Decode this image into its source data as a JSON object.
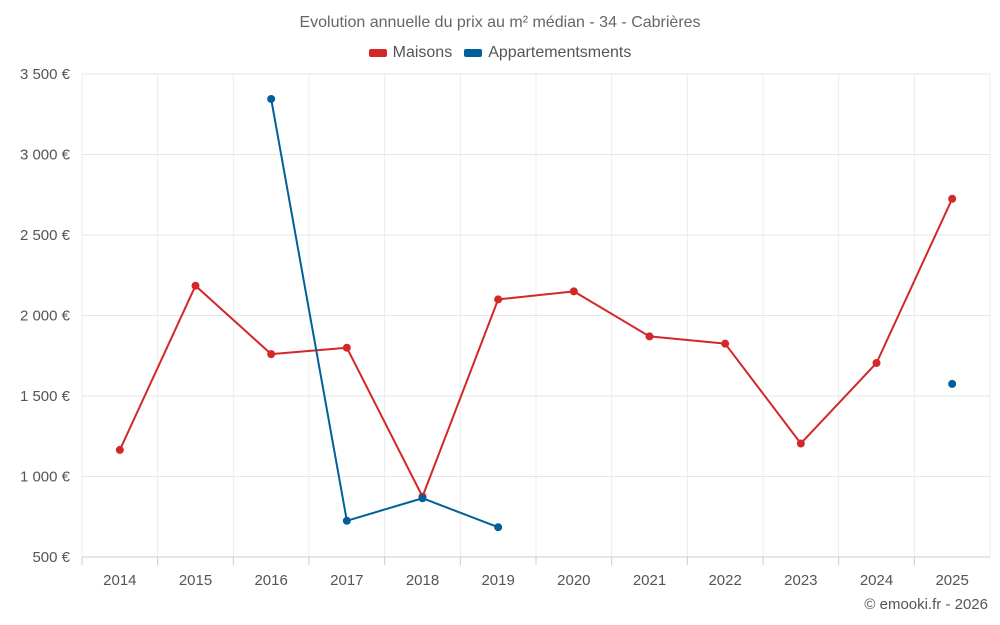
{
  "chart_data": {
    "type": "line",
    "title": "Evolution annuelle du prix au m² médian - 34 - Cabrières",
    "categories": [
      "2014",
      "2015",
      "2016",
      "2017",
      "2018",
      "2019",
      "2020",
      "2021",
      "2022",
      "2023",
      "2024",
      "2025"
    ],
    "y_ticks": [
      500,
      1000,
      1500,
      2000,
      2500,
      3000,
      3500
    ],
    "y_tick_labels": [
      "500 €",
      "1 000 €",
      "1 500 €",
      "2 000 €",
      "2 500 €",
      "3 000 €",
      "3 500 €"
    ],
    "ylim": [
      500,
      3500
    ],
    "grid": true,
    "legend_position": "top",
    "series": [
      {
        "name": "Maisons",
        "color": "#d32728",
        "values": [
          1165,
          2185,
          1760,
          1800,
          875,
          2100,
          2150,
          1870,
          1825,
          1205,
          1705,
          2725
        ]
      },
      {
        "name": "Appartementsments",
        "color": "#01609a",
        "values": [
          null,
          null,
          3345,
          725,
          865,
          685,
          null,
          null,
          null,
          null,
          null,
          1575
        ]
      }
    ],
    "credit": "© emooki.fr - 2026"
  }
}
